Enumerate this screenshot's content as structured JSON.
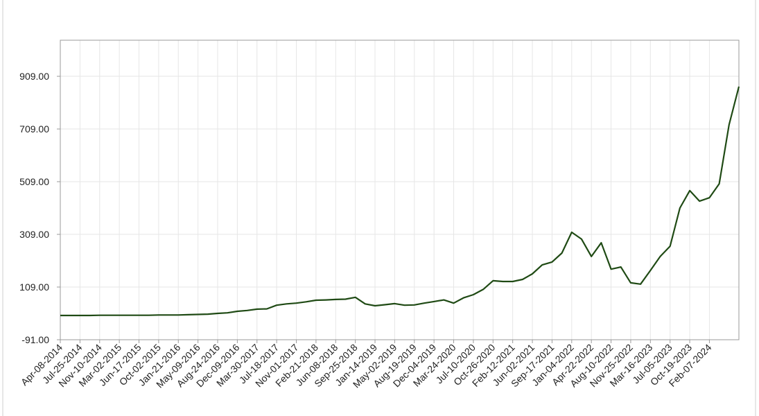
{
  "chart_data": {
    "type": "line",
    "categories": [
      "Apr-08-2014",
      null,
      "Jul-25-2014",
      null,
      "Nov-10-2014",
      null,
      "Mar-02-2015",
      null,
      "Jun-17-2015",
      null,
      "Oct-02-2015",
      null,
      "Jan-21-2016",
      null,
      "May-09-2016",
      null,
      "Aug-24-2016",
      null,
      "Dec-09-2016",
      null,
      "Mar-30-2017",
      null,
      "Jul-18-2017",
      null,
      "Nov-01-2017",
      null,
      "Feb-21-2018",
      null,
      "Jun-08-2018",
      null,
      "Sep-25-2018",
      null,
      "Jan-14-2019",
      null,
      "May-02-2019",
      null,
      "Aug-19-2019",
      null,
      "Dec-04-2019",
      null,
      "Mar-24-2020",
      null,
      "Jul-10-2020",
      null,
      "Oct-26-2020",
      null,
      "Feb-12-2021",
      null,
      "Jun-02-2021",
      null,
      "Sep-17-2021",
      null,
      "Jan-04-2022",
      null,
      "Apr-22-2022",
      null,
      "Aug-10-2022",
      null,
      "Nov-25-2022",
      null,
      "Mar-16-2023",
      null,
      "Jul-05-2023",
      null,
      "Oct-19-2023",
      null,
      "Feb-07-2024",
      null,
      null,
      null
    ],
    "values": [
      1,
      1,
      1,
      1,
      2,
      2,
      2,
      2,
      2,
      2,
      3,
      3,
      3,
      4,
      5,
      6,
      9,
      11,
      17,
      20,
      25,
      26,
      40,
      45,
      48,
      53,
      59,
      60,
      62,
      63,
      70,
      45,
      38,
      42,
      46,
      40,
      41,
      48,
      54,
      60,
      48,
      68,
      80,
      100,
      133,
      130,
      130,
      138,
      159,
      193,
      204,
      238,
      317,
      291,
      225,
      277,
      177,
      185,
      125,
      120,
      172,
      225,
      264,
      409,
      475,
      435,
      448,
      501,
      725,
      870
    ],
    "color": "#1f4a14",
    "ylim": [
      -91,
      1046
    ],
    "yticks": [
      {
        "value": -91,
        "label": "-91.00"
      },
      {
        "value": 109,
        "label": "109.00"
      },
      {
        "value": 309,
        "label": "309.00"
      },
      {
        "value": 509,
        "label": "509.00"
      },
      {
        "value": 709,
        "label": "709.00"
      },
      {
        "value": 909,
        "label": "909.00"
      }
    ],
    "grid": true
  }
}
